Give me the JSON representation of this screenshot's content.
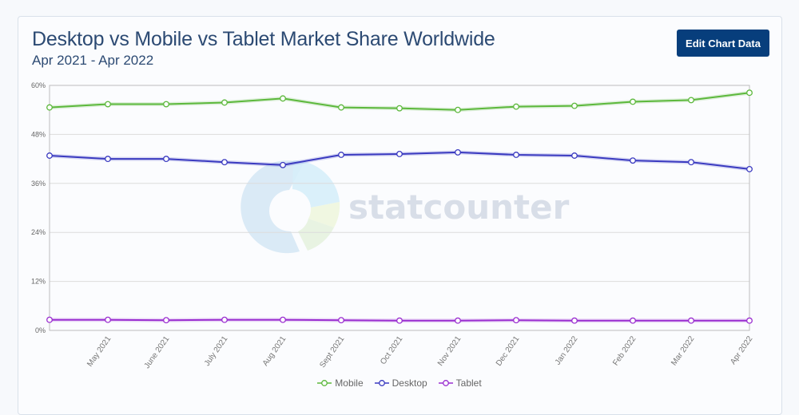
{
  "header": {
    "title": "Desktop vs Mobile vs Tablet Market Share Worldwide",
    "subtitle": "Apr 2021 - Apr 2022",
    "edit_button_label": "Edit Chart Data"
  },
  "watermark": {
    "text": "statcounter"
  },
  "legend": [
    {
      "label": "Mobile",
      "color": "#5cb83c",
      "icon": "circle-line-marker"
    },
    {
      "label": "Desktop",
      "color": "#3a3ac0",
      "icon": "circle-line-marker"
    },
    {
      "label": "Tablet",
      "color": "#9a2ed0",
      "icon": "circle-line-marker"
    }
  ],
  "chart_data": {
    "type": "line",
    "title": "Desktop vs Mobile vs Tablet Market Share Worldwide",
    "subtitle": "Apr 2021 - Apr 2022",
    "xlabel": "",
    "ylabel": "",
    "ylim": [
      0,
      60
    ],
    "yticks": [
      "0%",
      "12%",
      "24%",
      "36%",
      "48%",
      "60%"
    ],
    "grid": true,
    "legend_position": "bottom",
    "categories": [
      "Apr 2021",
      "May 2021",
      "June 2021",
      "July 2021",
      "Aug 2021",
      "Sept 2021",
      "Oct 2021",
      "Nov 2021",
      "Dec 2021",
      "Jan 2022",
      "Feb 2022",
      "Mar 2022",
      "Apr 2022"
    ],
    "xtick_labels": [
      "",
      "May 2021",
      "June 2021",
      "July 2021",
      "Aug 2021",
      "Sept 2021",
      "Oct 2021",
      "Nov 2021",
      "Dec 2021",
      "Jan 2022",
      "Feb 2022",
      "Mar 2022",
      "Apr 2022"
    ],
    "series": [
      {
        "name": "Mobile",
        "color": "#5cb83c",
        "values": [
          54.6,
          55.4,
          55.4,
          55.8,
          56.8,
          54.6,
          54.4,
          54.0,
          54.8,
          55.0,
          56.0,
          56.4,
          58.2
        ]
      },
      {
        "name": "Desktop",
        "color": "#3a3ac0",
        "values": [
          42.8,
          42.0,
          42.0,
          41.2,
          40.5,
          43.0,
          43.2,
          43.6,
          43.0,
          42.8,
          41.6,
          41.2,
          39.5
        ]
      },
      {
        "name": "Tablet",
        "color": "#9a2ed0",
        "values": [
          2.6,
          2.6,
          2.5,
          2.6,
          2.6,
          2.5,
          2.4,
          2.4,
          2.5,
          2.4,
          2.4,
          2.4,
          2.4
        ]
      }
    ]
  }
}
